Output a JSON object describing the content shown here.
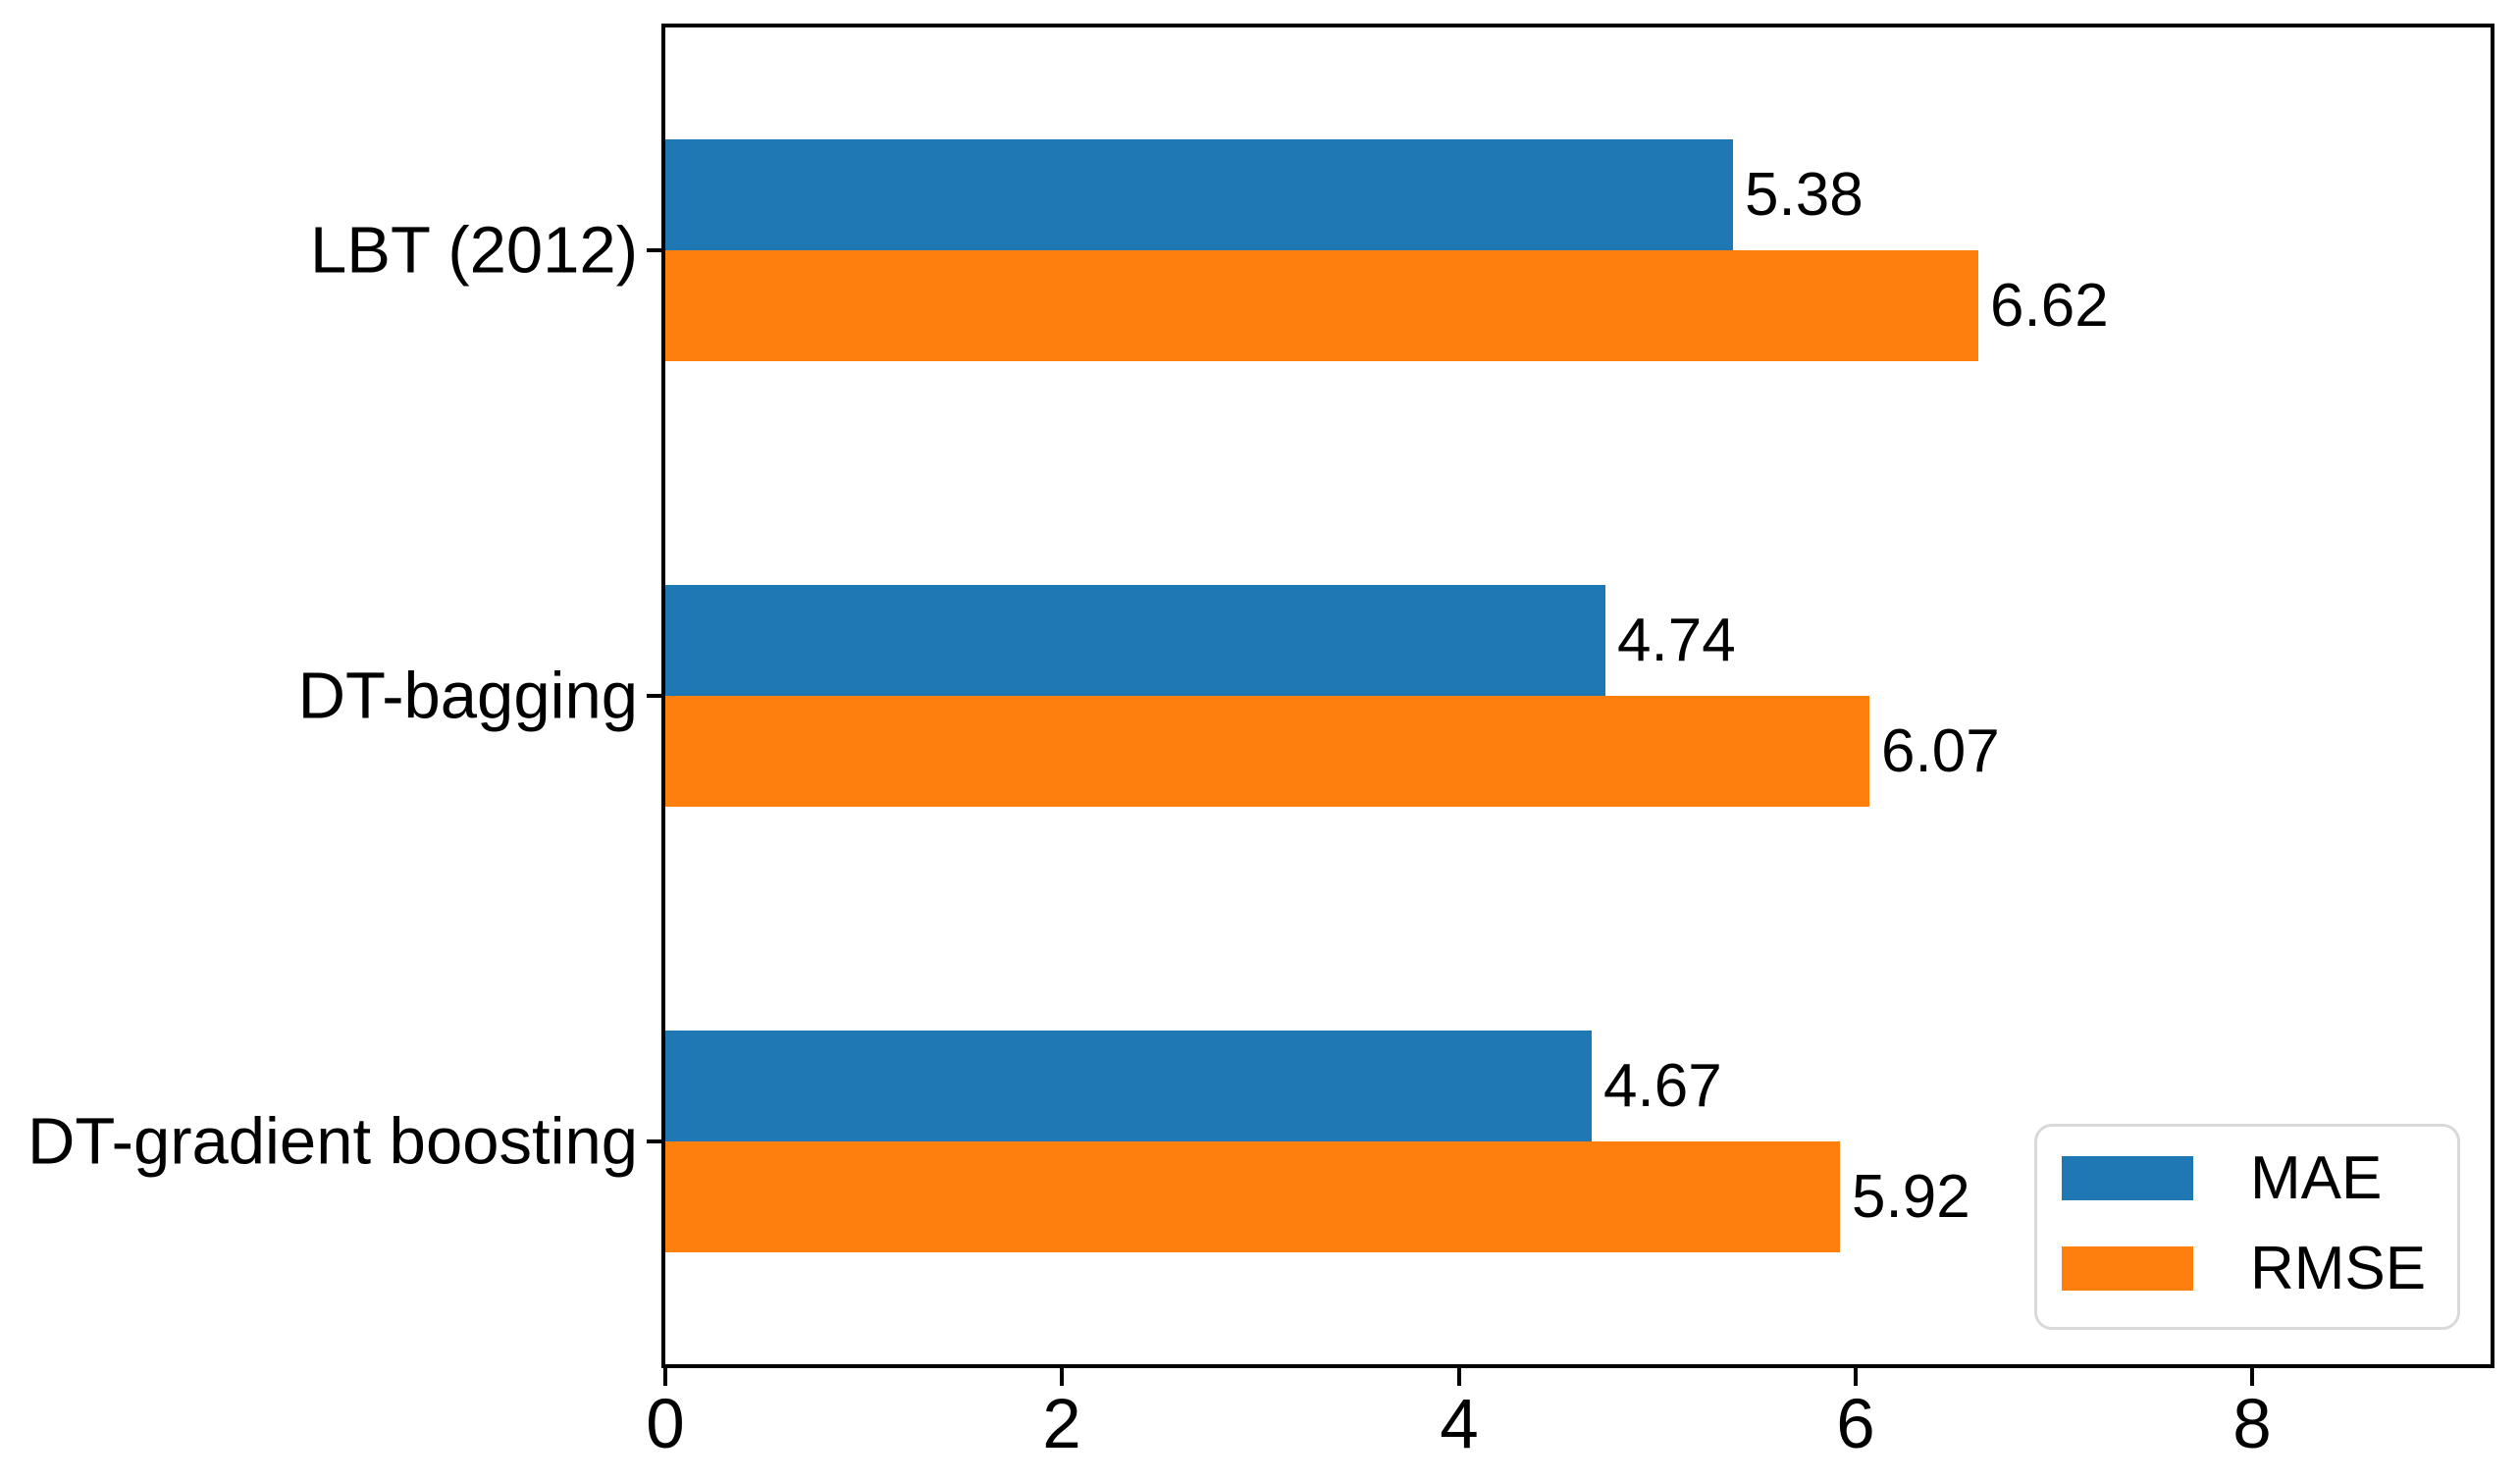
{
  "chart_data": {
    "type": "bar",
    "orientation": "horizontal",
    "title": "",
    "xlabel": "",
    "ylabel": "",
    "categories": [
      "LBT (2012)",
      "DT-bagging",
      "DT-gradient boosting"
    ],
    "series": [
      {
        "name": "MAE",
        "color": "#1f77b4",
        "values": [
          5.38,
          4.74,
          4.67
        ],
        "labels": [
          "5.38",
          "4.74",
          "4.67"
        ]
      },
      {
        "name": "RMSE",
        "color": "#ff7f0e",
        "values": [
          6.62,
          6.07,
          5.92
        ],
        "labels": [
          "6.62",
          "6.07",
          "5.92"
        ]
      }
    ],
    "x_ticks": [
      0,
      2,
      4,
      6,
      8
    ],
    "x_tick_labels": [
      "0",
      "2",
      "4",
      "6",
      "8"
    ],
    "xlim": [
      0,
      9.2
    ],
    "grid": false,
    "spines": "full-box",
    "legend": {
      "position": "lower right",
      "entries": [
        "MAE",
        "RMSE"
      ]
    }
  },
  "colors": {
    "spine": "#000000",
    "text": "#000000",
    "background": "#ffffff",
    "legend_border": "#d9d9d9"
  }
}
